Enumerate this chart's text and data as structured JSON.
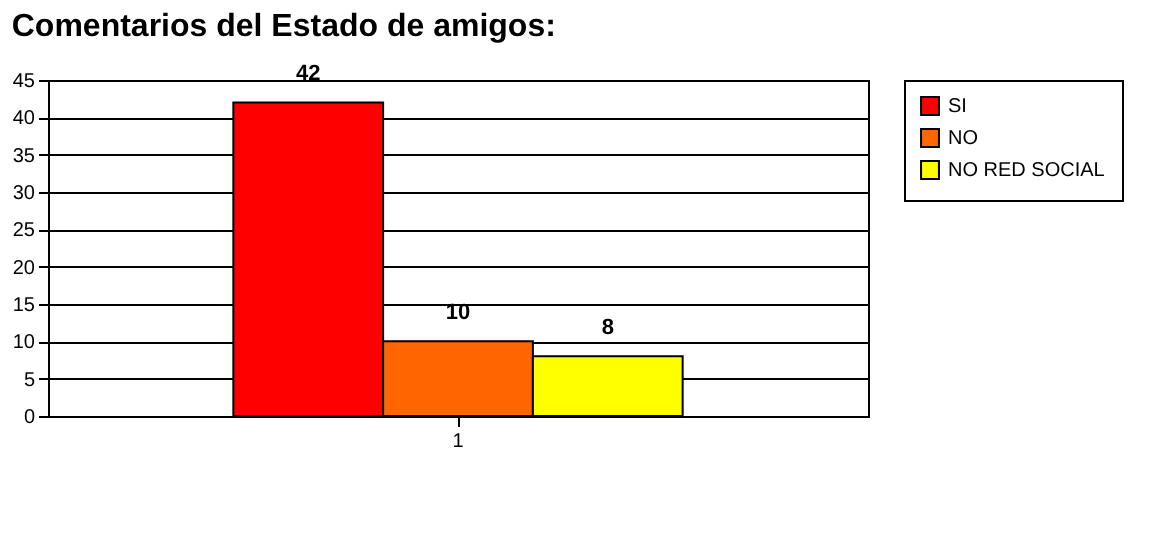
{
  "chart_data": {
    "type": "bar",
    "title": "Comentarios del Estado de amigos:",
    "categories": [
      "1"
    ],
    "series": [
      {
        "name": "SI",
        "color": "#ff0000",
        "values": [
          42
        ]
      },
      {
        "name": "NO",
        "color": "#ff6600",
        "values": [
          10
        ]
      },
      {
        "name": "NO RED SOCIAL",
        "color": "#ffff00",
        "values": [
          8
        ]
      }
    ],
    "ylim": [
      0,
      45
    ],
    "yticks": [
      0,
      5,
      10,
      15,
      20,
      25,
      30,
      35,
      40,
      45
    ],
    "grid": "y",
    "data_labels": true,
    "legend": "right"
  }
}
